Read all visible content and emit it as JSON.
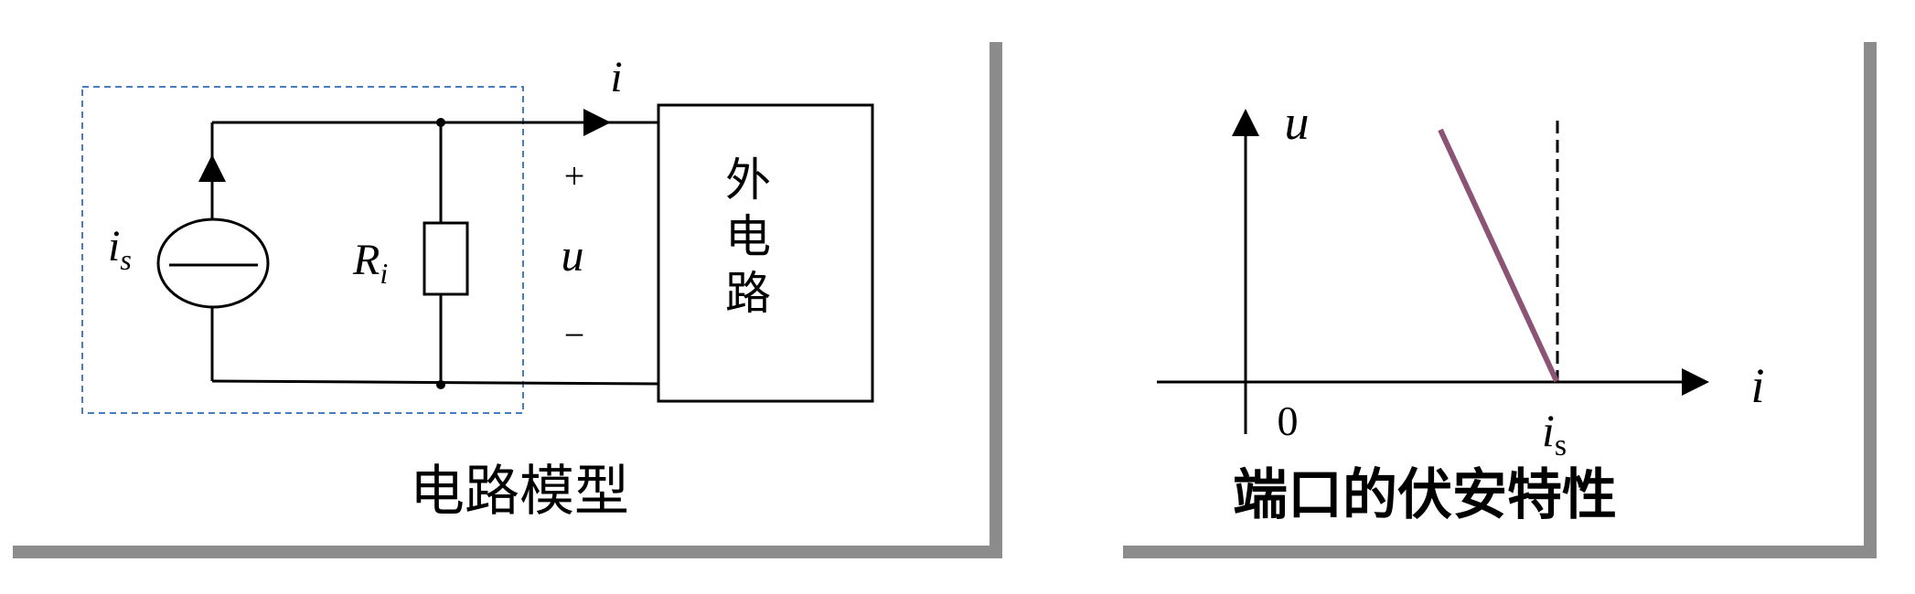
{
  "left_panel": {
    "caption": "电路模型",
    "current_label": "i",
    "source_label_main": "i",
    "source_label_sub": "s",
    "resistor_label_main": "R",
    "resistor_label_sub": "i",
    "voltage_label": "u",
    "plus_sign": "+",
    "minus_sign": "−",
    "external_circuit_chars": [
      "外",
      "电",
      "路"
    ]
  },
  "right_panel": {
    "caption": "端口的伏安特性",
    "axis_y_label": "u",
    "axis_x_label": "i",
    "origin_label": "0",
    "is_label_main": "i",
    "is_label_sub": "s"
  },
  "colors": {
    "line": "#000000",
    "dashed_box": "#4a7cc2",
    "characteristic_line": "#8b5374",
    "shadow": "#8c8c8c"
  }
}
